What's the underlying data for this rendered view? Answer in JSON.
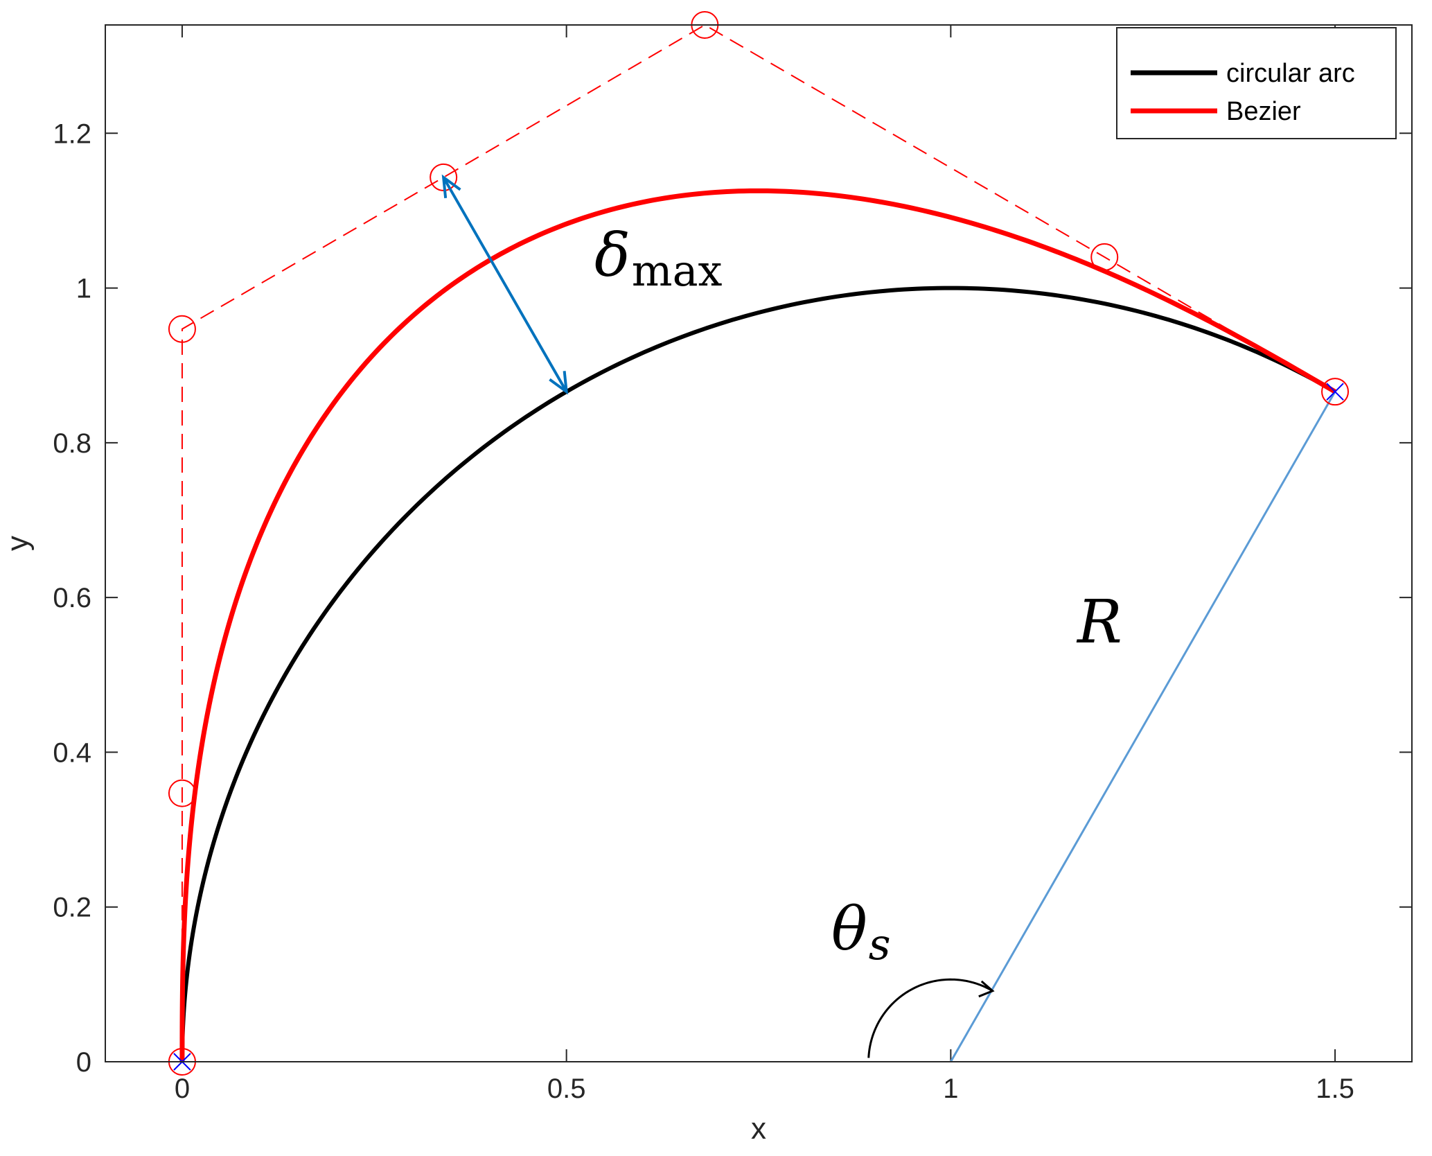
{
  "chart_data": {
    "type": "line",
    "xlabel": "x",
    "ylabel": "y",
    "xlim": [
      -0.1,
      1.6
    ],
    "ylim": [
      0,
      1.34
    ],
    "xticks": [
      0,
      0.5,
      1,
      1.5
    ],
    "xtick_labels": [
      "0",
      "0.5",
      "1",
      "1.5"
    ],
    "yticks": [
      0,
      0.2,
      0.4,
      0.6,
      0.8,
      1,
      1.2
    ],
    "ytick_labels": [
      "0",
      "0.2",
      "0.4",
      "0.6",
      "0.8",
      "1",
      "1.2"
    ],
    "grid": false,
    "legend_position": "top-right",
    "series": [
      {
        "name": "circular arc",
        "color": "#000000",
        "kind": "arc",
        "center": [
          1,
          0
        ],
        "radius": 1,
        "angle_start_deg": 180,
        "angle_end_deg": 60
      },
      {
        "name": "Bezier",
        "color": "#ff0000",
        "kind": "bezier",
        "control_points": [
          [
            0,
            0
          ],
          [
            0,
            0.347
          ],
          [
            0,
            0.947
          ],
          [
            0.34,
            1.143
          ],
          [
            0.68,
            1.34
          ],
          [
            1.2,
            1.04
          ],
          [
            1.5,
            0.866
          ]
        ]
      }
    ],
    "control_polygon": {
      "color": "#ff0000",
      "style": "dashed",
      "marker": "circle",
      "points": [
        [
          0,
          0
        ],
        [
          0,
          0.347
        ],
        [
          0,
          0.947
        ],
        [
          0.34,
          1.143
        ],
        [
          0.68,
          1.34
        ],
        [
          1.2,
          1.04
        ],
        [
          1.5,
          0.866
        ]
      ]
    },
    "endpoints": {
      "color": "#0000ff",
      "marker": "x",
      "points": [
        [
          0,
          0
        ],
        [
          1.5,
          0.866
        ]
      ]
    },
    "radius_line": {
      "color": "#5b9bd5",
      "from": [
        1,
        0
      ],
      "to": [
        1.5,
        0.866
      ]
    },
    "delta_arrow": {
      "color": "#0072bd",
      "from": [
        0.34,
        1.143
      ],
      "to": [
        0.5,
        0.866
      ]
    },
    "theta_arc": {
      "color": "#000000",
      "center": [
        1,
        0
      ],
      "radius": 0.107
    },
    "annotations": [
      {
        "id": "delta",
        "symbol": "δ",
        "subscript": "max",
        "at": [
          0.53,
          1.05
        ]
      },
      {
        "id": "radius",
        "symbol": "R",
        "at": [
          1.16,
          0.55
        ]
      },
      {
        "id": "theta",
        "symbol": "θ",
        "subscript": "s",
        "at": [
          0.84,
          0.14
        ]
      }
    ]
  }
}
